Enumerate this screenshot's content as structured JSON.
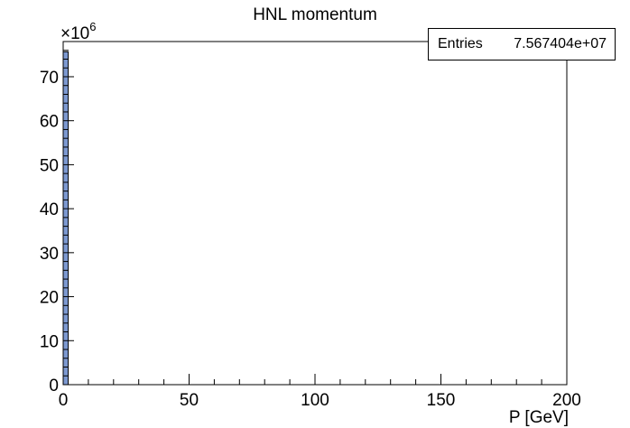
{
  "chart_data": {
    "type": "bar",
    "title": "HNL momentum",
    "xlabel": "P [GeV]",
    "ylabel": "",
    "y_multiplier_label": "×10",
    "y_multiplier_exponent": "6",
    "xlim": [
      0,
      200
    ],
    "ylim": [
      0,
      78
    ],
    "x_ticks": [
      0,
      50,
      100,
      150,
      200
    ],
    "y_ticks": [
      0,
      10,
      20,
      30,
      40,
      50,
      60,
      70
    ],
    "bins": [
      {
        "x_low": 0,
        "x_high": 2,
        "value": 75.67
      }
    ],
    "fill_color": "#7d99d1",
    "stats": {
      "label": "Entries",
      "value": "7.567404e+07"
    }
  }
}
